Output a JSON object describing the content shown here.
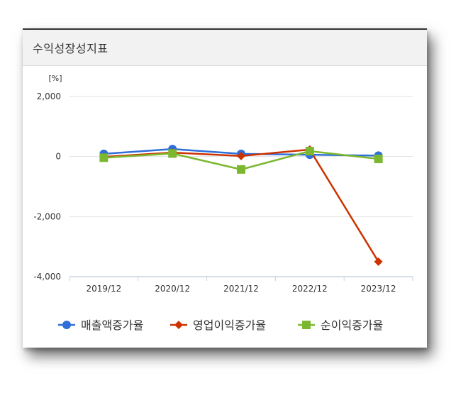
{
  "panel": {
    "title": "수익성장성지표"
  },
  "colors": {
    "sales": "#2f6fd8",
    "op": "#cc3300",
    "net": "#7cb82f"
  },
  "chart_data": {
    "type": "line",
    "title": "",
    "xlabel": "",
    "ylabel": "[%]",
    "categories": [
      "2019/12",
      "2020/12",
      "2021/12",
      "2022/12",
      "2023/12"
    ],
    "ylim": [
      -4000,
      2000
    ],
    "yticks": [
      "2,000",
      "0",
      "-2,000",
      "-4,000"
    ],
    "ytick_values": [
      2000,
      0,
      -2000,
      -4000
    ],
    "grid": true,
    "legend_position": "bottom",
    "series": [
      {
        "name": "매출액증가율",
        "marker": "circle",
        "values": [
          90,
          250,
          90,
          60,
          30
        ]
      },
      {
        "name": "영업이익증가율",
        "marker": "diamond",
        "values": [
          -10,
          130,
          20,
          230,
          -3500
        ]
      },
      {
        "name": "순이익증가율",
        "marker": "square",
        "values": [
          -40,
          100,
          -430,
          180,
          -80
        ]
      }
    ]
  }
}
